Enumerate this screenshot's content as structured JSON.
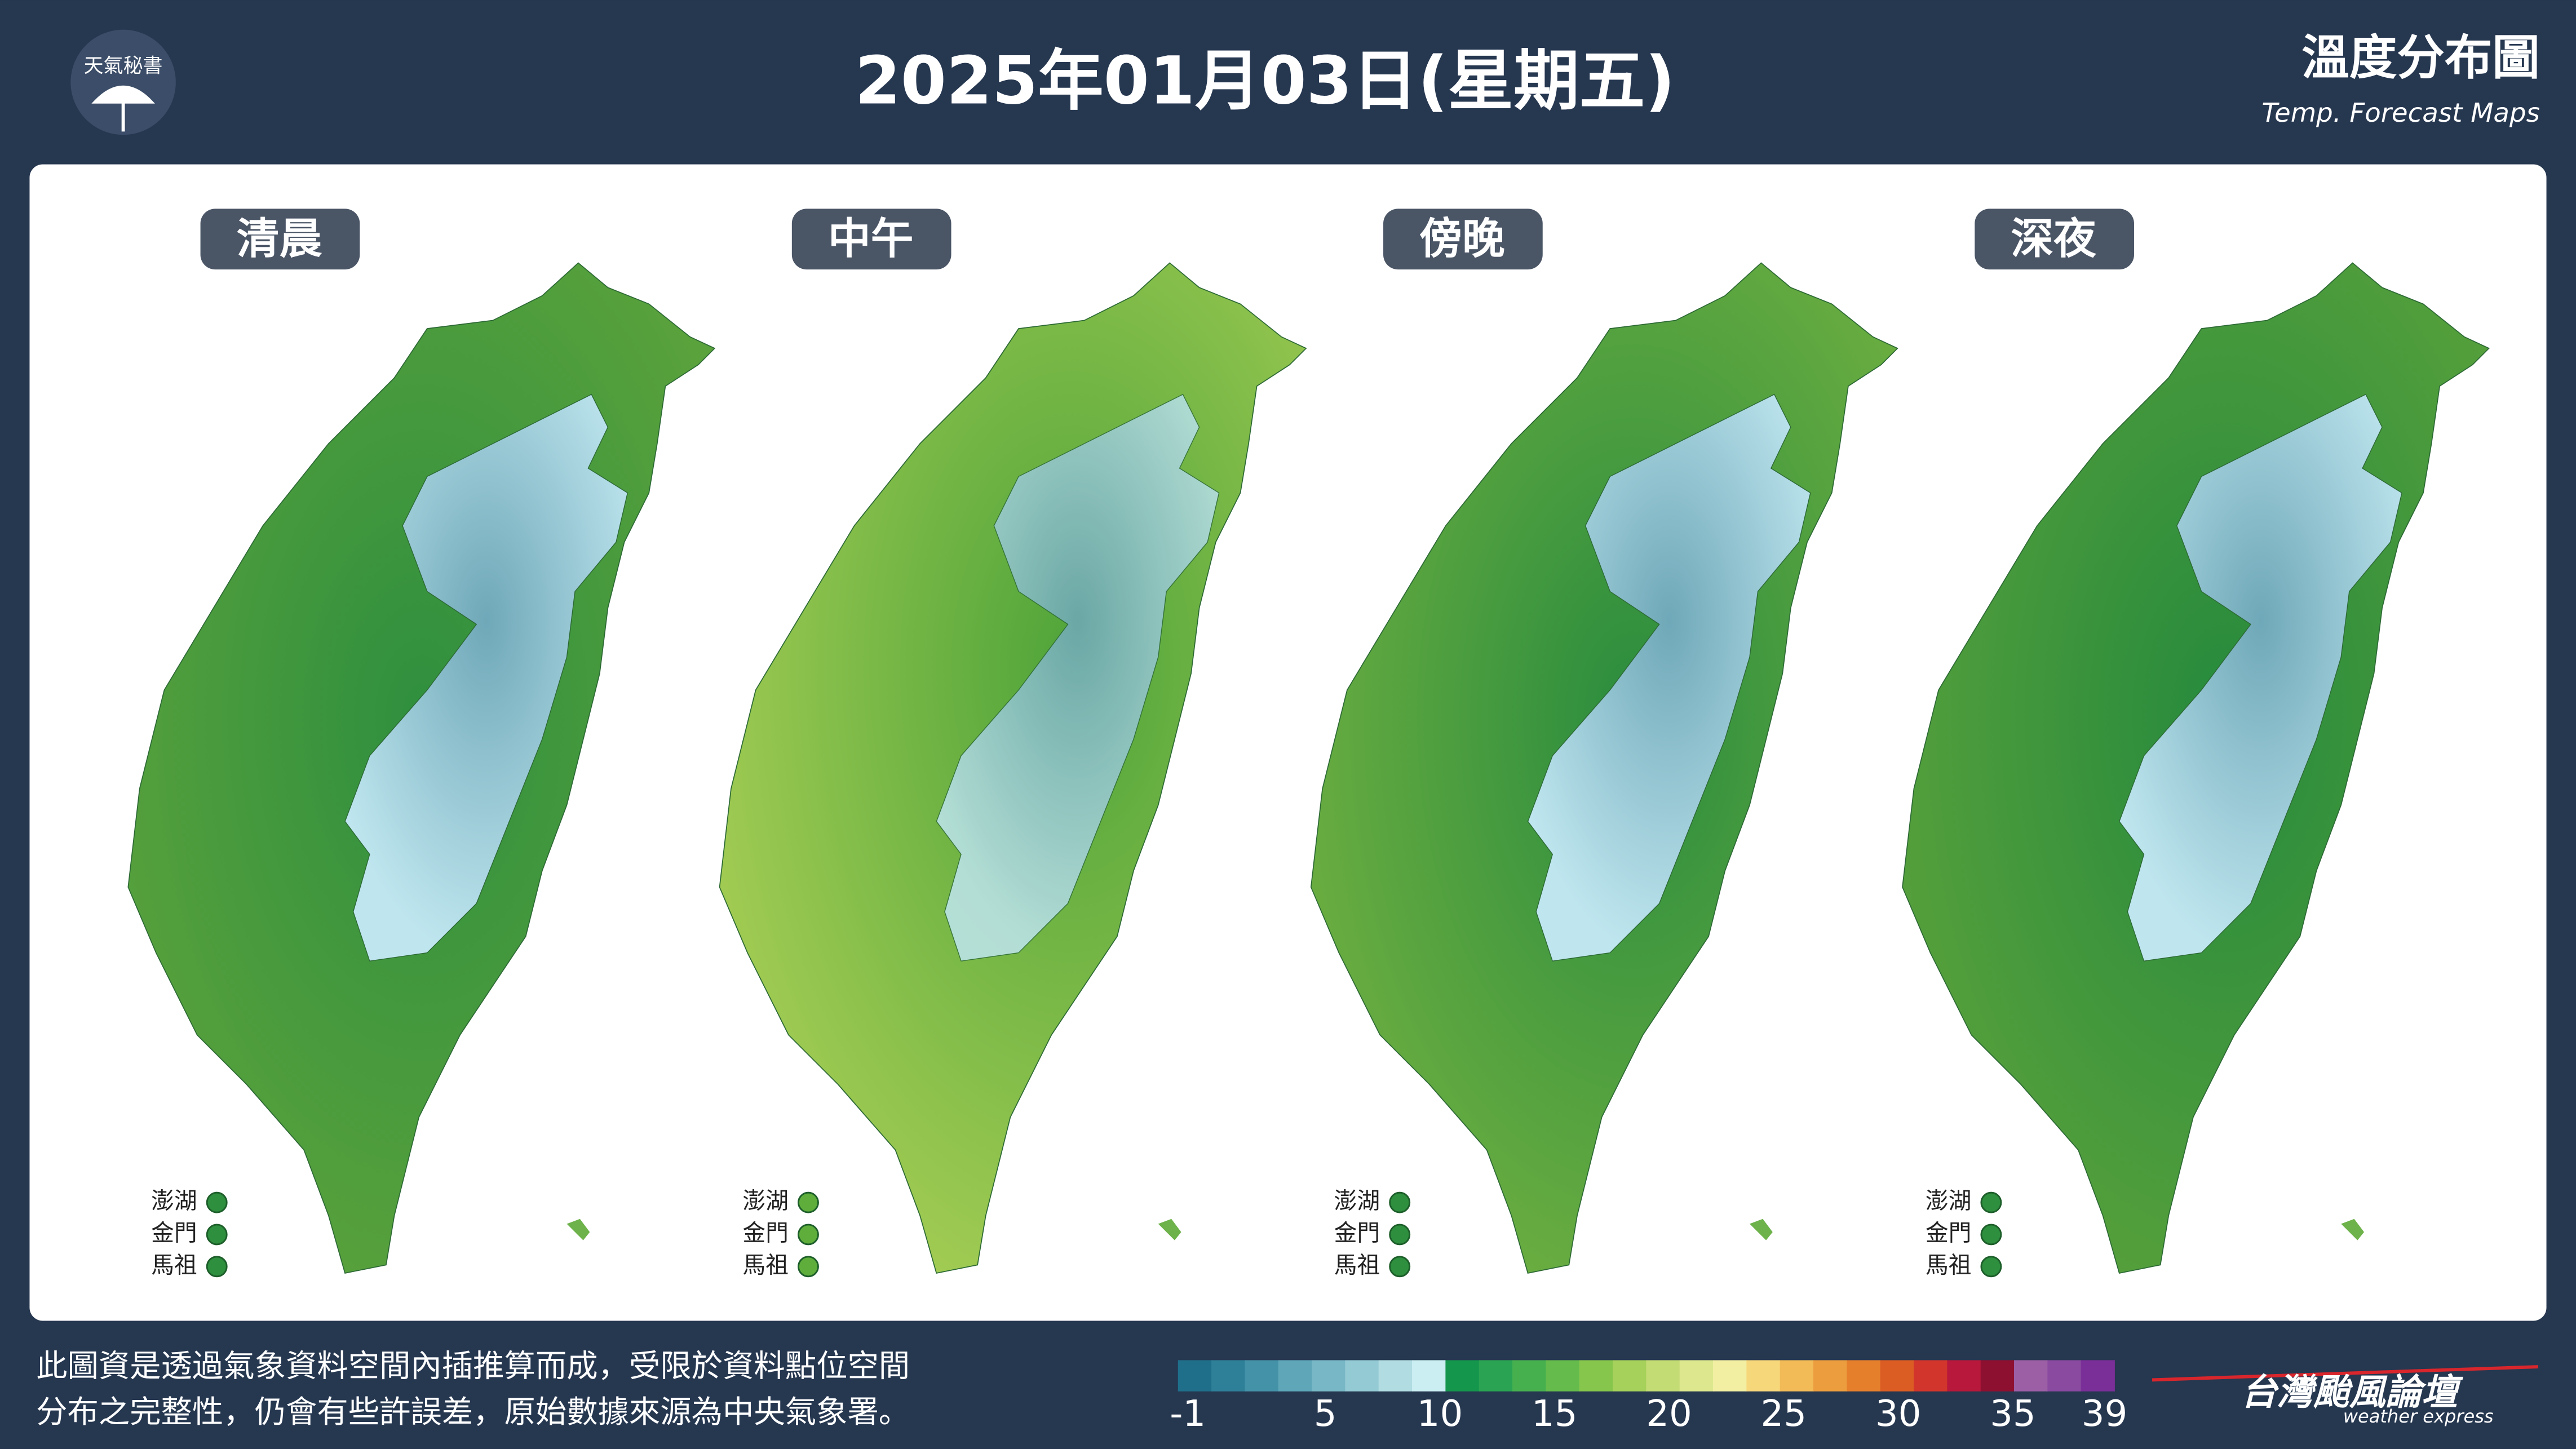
{
  "header": {
    "logo": "天氣秘書",
    "title": "2025年01月03日(星期五)",
    "map_title": "溫度分布圖",
    "map_subtitle": "Temp. Forecast Maps"
  },
  "panels": [
    {
      "label": "清晨",
      "islands": [
        "澎湖",
        "金門",
        "馬祖"
      ]
    },
    {
      "label": "中午",
      "islands": [
        "澎湖",
        "金門",
        "馬祖"
      ]
    },
    {
      "label": "傍晚",
      "islands": [
        "澎湖",
        "金門",
        "馬祖"
      ]
    },
    {
      "label": "深夜",
      "islands": [
        "澎湖",
        "金門",
        "馬祖"
      ]
    }
  ],
  "colorbar": {
    "ticks": [
      -1,
      5,
      10,
      15,
      20,
      25,
      30,
      35,
      39
    ],
    "colors": [
      "#1f6f8b",
      "#2e8098",
      "#4492a8",
      "#5ea6b8",
      "#78b8c6",
      "#94cad4",
      "#b0dce2",
      "#cbeef2",
      "#15964d",
      "#2aa452",
      "#46b04f",
      "#65bb4c",
      "#86c64c",
      "#a6d15a",
      "#c3dc74",
      "#dde88e",
      "#f3efa2",
      "#f6d77a",
      "#f2bb58",
      "#ec9d3e",
      "#e57f2c",
      "#db5d24",
      "#d2352b",
      "#b8183b",
      "#8e1030",
      "#9c5fa6",
      "#8a4aa0",
      "#7a2f98"
    ]
  },
  "footer": {
    "note_lines": [
      "此圖資是透過氣象資料空間內插推算而成，受限於資料點位空間",
      "分布之完整性，仍會有些許誤差，原始數據來源為中央氣象署。"
    ],
    "brand": "台灣颱風論壇",
    "brand_sub": "weather express"
  }
}
